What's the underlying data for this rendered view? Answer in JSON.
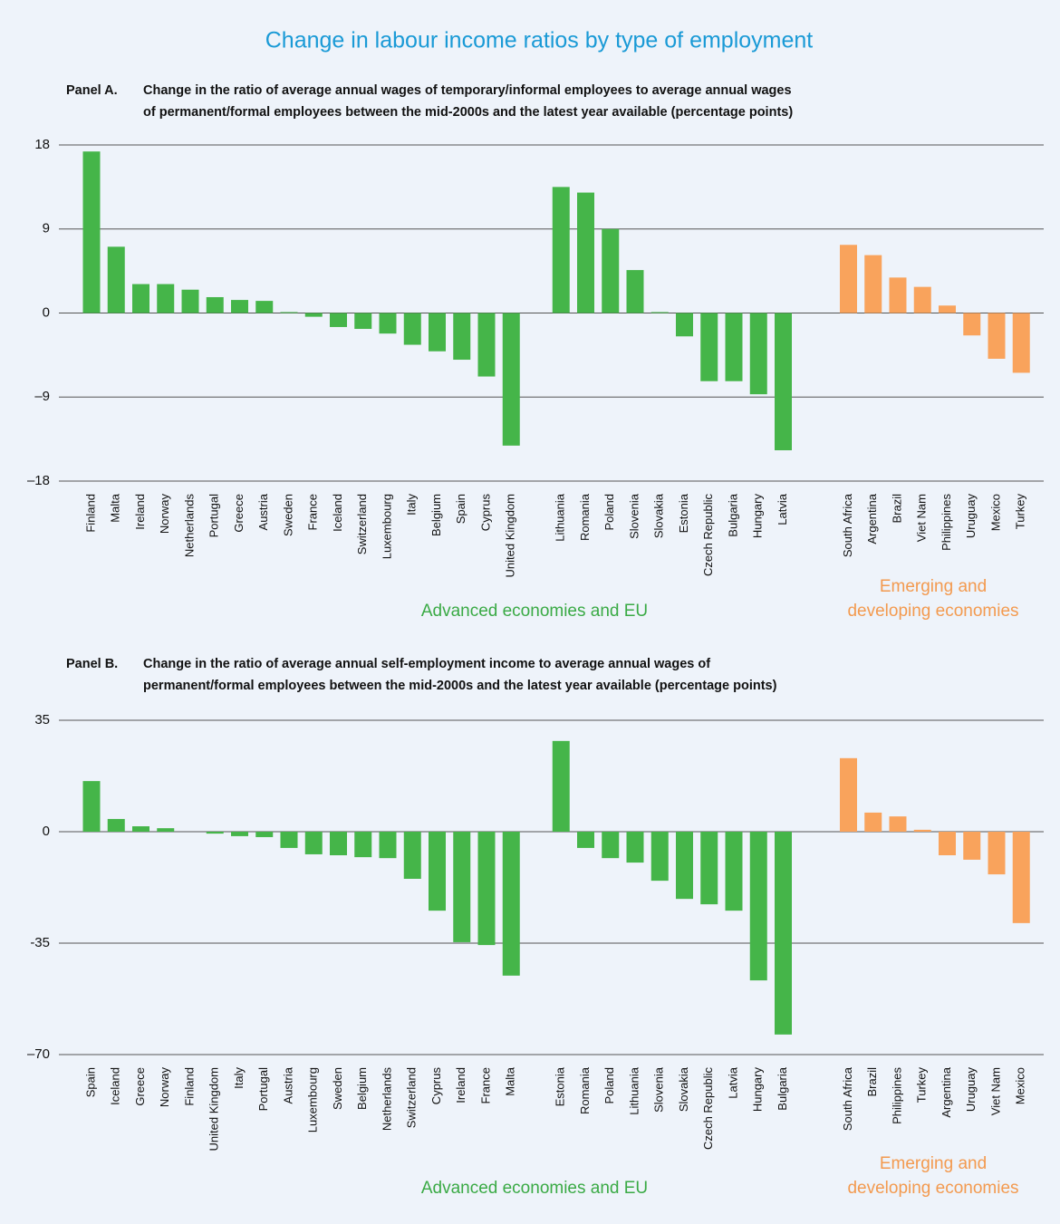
{
  "title": "Change in labour income ratios by type of employment",
  "chart_data": [
    {
      "type": "bar",
      "label": "Panel A.",
      "title": [
        "Change in the ratio of average annual wages of temporary/informal employees to average annual wages",
        "of permanent/formal employees between the mid-2000s and the latest year available (percentage points)"
      ],
      "ylim": [
        -18,
        18
      ],
      "yticks": [
        18,
        9,
        0,
        {
          "value": -9,
          "label": "–9"
        },
        {
          "value": -18,
          "label": "–18"
        }
      ],
      "grid": true,
      "groups": [
        {
          "name": [
            "Advanced economies and EU"
          ],
          "color": "#45b549",
          "clusters": [
            {
              "categories": [
                "Finland",
                "Malta",
                "Ireland",
                "Norway",
                "Netherlands",
                "Portugal",
                "Greece",
                "Austria",
                "Sweden",
                "France",
                "Iceland",
                "Switzerland",
                "Luxembourg",
                "Italy",
                "Belgium",
                "Spain",
                "Cyprus",
                "United Kingdom"
              ],
              "values": [
                17.3,
                7.1,
                3.1,
                3.1,
                2.5,
                1.7,
                1.4,
                1.3,
                0.1,
                -0.4,
                -1.5,
                -1.7,
                -2.2,
                -3.4,
                -4.1,
                -5.0,
                -6.8,
                -14.2
              ]
            },
            {
              "categories": [
                "Lithuania",
                "Romania",
                "Poland",
                "Slovenia",
                "Slovakia",
                "Estonia",
                "Czech Republic",
                "Bulgaria",
                "Hungary",
                "Latvia"
              ],
              "values": [
                13.5,
                12.9,
                9.0,
                4.6,
                0.1,
                -2.5,
                -7.3,
                -7.3,
                -8.7,
                -14.7
              ]
            }
          ]
        },
        {
          "name": [
            "Emerging and",
            "developing economies"
          ],
          "color": "#f9a35c",
          "clusters": [
            {
              "categories": [
                "South Africa",
                "Argentina",
                "Brazil",
                "Viet Nam",
                "Philippines",
                "Uruguay",
                "Mexico",
                "Turkey"
              ],
              "values": [
                7.3,
                6.2,
                3.8,
                2.8,
                0.8,
                -2.4,
                -4.9,
                -6.4
              ]
            }
          ]
        }
      ]
    },
    {
      "type": "bar",
      "label": "Panel B.",
      "title": [
        "Change in the ratio of average annual self-employment income to average annual wages of",
        "permanent/formal employees between the mid-2000s and the latest year available (percentage points)"
      ],
      "ylim": [
        -70,
        35
      ],
      "yticks": [
        35,
        0,
        -35,
        {
          "value": -70,
          "label": "–70"
        }
      ],
      "grid": true,
      "groups": [
        {
          "name": [
            "Advanced economies and EU"
          ],
          "color": "#45b549",
          "clusters": [
            {
              "categories": [
                "Spain",
                "Iceland",
                "Greece",
                "Norway",
                "Finland",
                "United Kingdom",
                "Italy",
                "Portugal",
                "Austria",
                "Luxembourg",
                "Sweden",
                "Belgium",
                "Netherlands",
                "Switzerland",
                "Cyprus",
                "Ireland",
                "France",
                "Malta"
              ],
              "values": [
                15.9,
                4.0,
                1.7,
                1.1,
                0,
                -0.6,
                -1.4,
                -1.7,
                -5.1,
                -7.1,
                -7.4,
                -8.0,
                -8.3,
                -14.8,
                -24.8,
                -34.7,
                -35.6,
                -45.2
              ]
            },
            {
              "categories": [
                "Estonia",
                "Romania",
                "Poland",
                "Lithuania",
                "Slovenia",
                "Slovakia",
                "Czech Republic",
                "Latvia",
                "Hungary",
                "Bulgaria"
              ],
              "values": [
                28.5,
                -5.1,
                -8.3,
                -9.7,
                -15.4,
                -21.1,
                -22.8,
                -24.8,
                -46.7,
                -63.7
              ]
            }
          ]
        },
        {
          "name": [
            "Emerging and",
            "developing economies"
          ],
          "color": "#f9a35c",
          "clusters": [
            {
              "categories": [
                "South Africa",
                "Brazil",
                "Philippines",
                "Turkey",
                "Argentina",
                "Uruguay",
                "Viet Nam",
                "Mexico"
              ],
              "values": [
                23.1,
                6.0,
                4.8,
                0.6,
                -7.4,
                -8.8,
                -13.4,
                -28.7
              ]
            }
          ]
        }
      ]
    }
  ]
}
